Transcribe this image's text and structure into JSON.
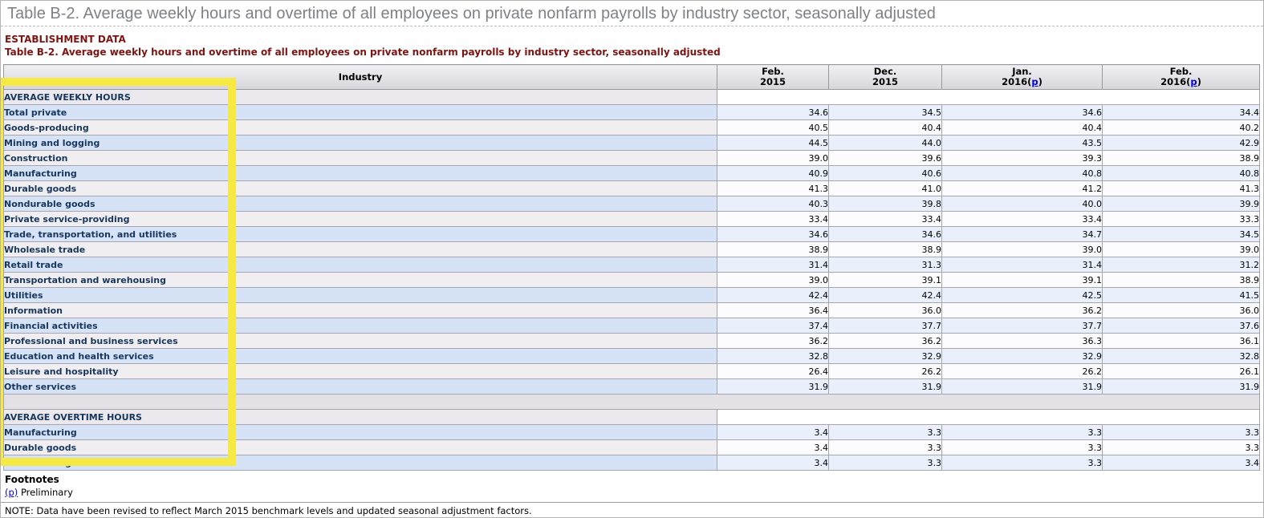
{
  "page_title": "Table B-2. Average weekly hours and overtime of all employees on private nonfarm payrolls by industry sector, seasonally adjusted",
  "section_label": "ESTABLISHMENT DATA",
  "table_title": "Table B-2. Average weekly hours and overtime of all employees on private nonfarm payrolls by industry sector, seasonally adjusted",
  "columns": {
    "industry": "Industry",
    "preliminary_open": "(",
    "preliminary_letter": "p",
    "preliminary_close": ")",
    "periods": [
      {
        "line1": "Feb.",
        "line2": "2015",
        "preliminary": false
      },
      {
        "line1": "Dec.",
        "line2": "2015",
        "preliminary": false
      },
      {
        "line1": "Jan.",
        "line2": "2016",
        "preliminary": true
      },
      {
        "line1": "Feb.",
        "line2": "2016",
        "preliminary": true
      }
    ]
  },
  "rows": [
    {
      "type": "section",
      "label": "AVERAGE WEEKLY HOURS",
      "indent": 0
    },
    {
      "type": "data",
      "label": "Total private",
      "indent": 1,
      "shade": "blue",
      "values": [
        "34.6",
        "34.5",
        "34.6",
        "34.4"
      ]
    },
    {
      "type": "data",
      "label": "Goods-producing",
      "indent": 2,
      "shade": "white",
      "values": [
        "40.5",
        "40.4",
        "40.4",
        "40.2"
      ]
    },
    {
      "type": "data",
      "label": "Mining and logging",
      "indent": 3,
      "shade": "blue",
      "values": [
        "44.5",
        "44.0",
        "43.5",
        "42.9"
      ]
    },
    {
      "type": "data",
      "label": "Construction",
      "indent": 3,
      "shade": "white",
      "values": [
        "39.0",
        "39.6",
        "39.3",
        "38.9"
      ]
    },
    {
      "type": "data",
      "label": "Manufacturing",
      "indent": 3,
      "shade": "blue",
      "values": [
        "40.9",
        "40.6",
        "40.8",
        "40.8"
      ]
    },
    {
      "type": "data",
      "label": "Durable goods",
      "indent": 4,
      "shade": "white",
      "values": [
        "41.3",
        "41.0",
        "41.2",
        "41.3"
      ]
    },
    {
      "type": "data",
      "label": "Nondurable goods",
      "indent": 4,
      "shade": "blue",
      "values": [
        "40.3",
        "39.8",
        "40.0",
        "39.9"
      ]
    },
    {
      "type": "data",
      "label": "Private service-providing",
      "indent": 2,
      "shade": "white",
      "values": [
        "33.4",
        "33.4",
        "33.4",
        "33.3"
      ]
    },
    {
      "type": "data",
      "label": "Trade, transportation, and utilities",
      "indent": 3,
      "shade": "blue",
      "values": [
        "34.6",
        "34.6",
        "34.7",
        "34.5"
      ]
    },
    {
      "type": "data",
      "label": "Wholesale trade",
      "indent": 4,
      "shade": "white",
      "values": [
        "38.9",
        "38.9",
        "39.0",
        "39.0"
      ]
    },
    {
      "type": "data",
      "label": "Retail trade",
      "indent": 4,
      "shade": "blue",
      "values": [
        "31.4",
        "31.3",
        "31.4",
        "31.2"
      ]
    },
    {
      "type": "data",
      "label": "Transportation and warehousing",
      "indent": 4,
      "shade": "white",
      "values": [
        "39.0",
        "39.1",
        "39.1",
        "38.9"
      ]
    },
    {
      "type": "data",
      "label": "Utilities",
      "indent": 4,
      "shade": "blue",
      "values": [
        "42.4",
        "42.4",
        "42.5",
        "41.5"
      ]
    },
    {
      "type": "data",
      "label": "Information",
      "indent": 3,
      "shade": "white",
      "values": [
        "36.4",
        "36.0",
        "36.2",
        "36.0"
      ]
    },
    {
      "type": "data",
      "label": "Financial activities",
      "indent": 3,
      "shade": "blue",
      "values": [
        "37.4",
        "37.7",
        "37.7",
        "37.6"
      ]
    },
    {
      "type": "data",
      "label": "Professional and business services",
      "indent": 3,
      "shade": "white",
      "values": [
        "36.2",
        "36.2",
        "36.3",
        "36.1"
      ]
    },
    {
      "type": "data",
      "label": "Education and health services",
      "indent": 3,
      "shade": "blue",
      "values": [
        "32.8",
        "32.9",
        "32.9",
        "32.8"
      ]
    },
    {
      "type": "data",
      "label": "Leisure and hospitality",
      "indent": 3,
      "shade": "white",
      "values": [
        "26.4",
        "26.2",
        "26.2",
        "26.1"
      ]
    },
    {
      "type": "data",
      "label": "Other services",
      "indent": 3,
      "shade": "blue",
      "values": [
        "31.9",
        "31.9",
        "31.9",
        "31.9"
      ]
    },
    {
      "type": "separator"
    },
    {
      "type": "section",
      "label": "AVERAGE OVERTIME HOURS",
      "indent": 0
    },
    {
      "type": "data",
      "label": "Manufacturing",
      "indent": 1,
      "shade": "blue",
      "values": [
        "3.4",
        "3.3",
        "3.3",
        "3.3"
      ]
    },
    {
      "type": "data",
      "label": "Durable goods",
      "indent": 2,
      "shade": "white",
      "values": [
        "3.4",
        "3.3",
        "3.3",
        "3.3"
      ]
    },
    {
      "type": "data",
      "label": "Nondurable goods",
      "indent": 2,
      "shade": "blue",
      "values": [
        "3.4",
        "3.3",
        "3.3",
        "3.4"
      ]
    }
  ],
  "footnotes": {
    "heading": "Footnotes",
    "marker": "(p)",
    "marker_text": "Preliminary",
    "note": "NOTE: Data have been revised to reflect March 2015 benchmark levels and updated seasonal adjustment factors."
  },
  "colors": {
    "title_gray": "#7e8185",
    "heading_maroon": "#7c1412",
    "row_label_navy": "#17375e",
    "row_blue_stub": "#d6e3f7",
    "row_blue_cell": "#e9f0fb",
    "section_gray": "#ebe9ed",
    "link_blue": "#0000dd",
    "highlight_yellow": "#f7e943"
  },
  "annotation": {
    "type": "highlight-box",
    "region": "industry-column"
  }
}
